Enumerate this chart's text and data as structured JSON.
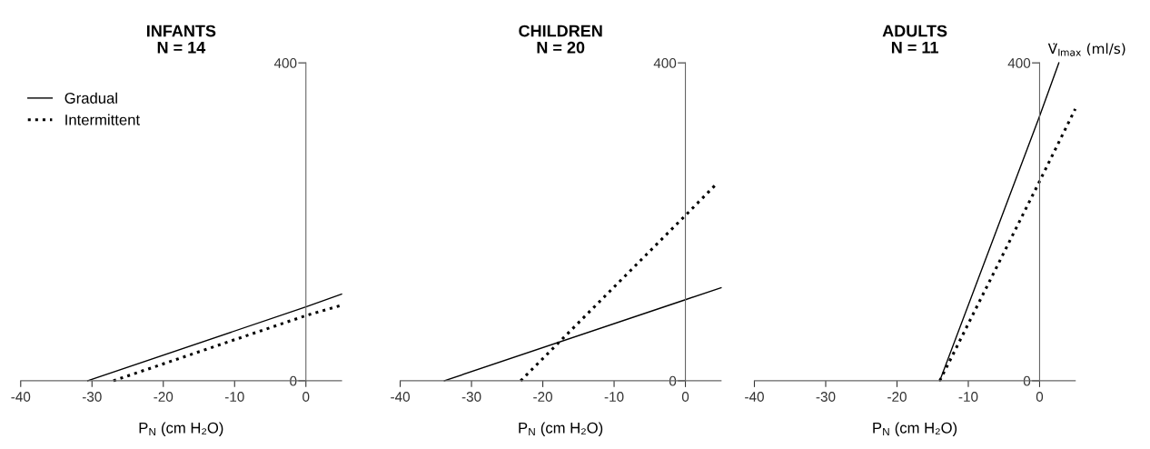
{
  "chart_data": [
    {
      "type": "line",
      "title": "INFANTS\nN = 14",
      "xlabel": "P$_{N}$ (cm H₂O)",
      "xlim": [
        -40,
        5
      ],
      "xticks": [
        -40,
        -30,
        -20,
        -10,
        0
      ],
      "ylim": [
        0,
        400
      ],
      "yticks": [
        0,
        400
      ],
      "legend": "top left",
      "grid": false,
      "series": [
        {
          "name": "Gradual",
          "color": "#000000",
          "line_style": "solid",
          "x": [
            -30.6,
            0,
            5
          ],
          "values": [
            0,
            93,
            109
          ]
        },
        {
          "name": "Intermittent",
          "color": "#000000",
          "line_style": "dotted",
          "x": [
            -27,
            0,
            5
          ],
          "values": [
            0,
            82,
            95
          ]
        }
      ]
    },
    {
      "type": "line",
      "title": "CHILDREN\nN = 20",
      "xlabel": "P$_{N}$ (cm H₂O)",
      "xlim": [
        -40,
        5
      ],
      "xticks": [
        -40,
        -30,
        -20,
        -10,
        0
      ],
      "ylim": [
        0,
        400
      ],
      "yticks": [
        0,
        400
      ],
      "grid": false,
      "series": [
        {
          "color": "#000000",
          "line_style": "solid",
          "x": [
            -33.8,
            0,
            5
          ],
          "values": [
            0,
            102,
            117
          ]
        },
        {
          "color": "#000000",
          "line_style": "dotted",
          "x": [
            -23.1,
            0,
            4.5
          ],
          "values": [
            0,
            208,
            249
          ]
        }
      ]
    },
    {
      "type": "line",
      "title": "ADULTS\nN = 11",
      "xlabel": "P$_{N}$ (cm H₂O)",
      "ylabel": "V̇$_{Imax}$ (ml/s)",
      "xlim": [
        -40,
        5
      ],
      "xticks": [
        -40,
        -30,
        -20,
        -10,
        0
      ],
      "ylim": [
        0,
        400
      ],
      "yticks": [
        0,
        400
      ],
      "grid": false,
      "series": [
        {
          "color": "#000000",
          "line_style": "solid",
          "x": [
            -14,
            0,
            2.7
          ],
          "values": [
            0,
            333,
            400
          ]
        },
        {
          "color": "#000000",
          "line_style": "dotted",
          "x": [
            -14,
            0,
            5
          ],
          "values": [
            0,
            251,
            342
          ]
        }
      ]
    }
  ]
}
